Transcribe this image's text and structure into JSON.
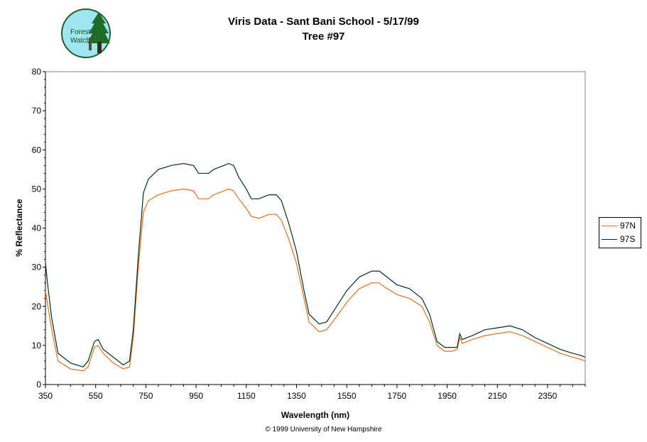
{
  "chart_data": {
    "type": "line",
    "title": "Viris Data - Sant Bani School - 5/17/99",
    "subtitle": "Tree #97",
    "xlabel": "Wavelength (nm)",
    "ylabel": "% Reflectance",
    "xlim": [
      350,
      2500
    ],
    "ylim": [
      0,
      80
    ],
    "xticks": [
      350,
      550,
      750,
      950,
      1150,
      1350,
      1550,
      1750,
      1950,
      2150,
      2350
    ],
    "yticks": [
      0,
      10,
      20,
      30,
      40,
      50,
      60,
      70,
      80
    ],
    "grid": false,
    "legend": "right",
    "series": [
      {
        "name": "97N",
        "color": "#e07020",
        "points": [
          [
            350,
            24
          ],
          [
            360,
            20
          ],
          [
            375,
            14
          ],
          [
            400,
            6
          ],
          [
            450,
            4
          ],
          [
            500,
            3.5
          ],
          [
            520,
            4.5
          ],
          [
            545,
            9.5
          ],
          [
            560,
            10
          ],
          [
            580,
            8
          ],
          [
            620,
            5.5
          ],
          [
            660,
            4
          ],
          [
            685,
            4.5
          ],
          [
            700,
            12
          ],
          [
            720,
            30
          ],
          [
            740,
            44
          ],
          [
            760,
            47
          ],
          [
            800,
            48.5
          ],
          [
            850,
            49.5
          ],
          [
            900,
            50
          ],
          [
            940,
            49.5
          ],
          [
            960,
            47.5
          ],
          [
            1000,
            47.5
          ],
          [
            1020,
            48.5
          ],
          [
            1060,
            49.5
          ],
          [
            1080,
            50
          ],
          [
            1100,
            49.5
          ],
          [
            1120,
            47.5
          ],
          [
            1150,
            45
          ],
          [
            1170,
            43
          ],
          [
            1200,
            42.5
          ],
          [
            1240,
            43.5
          ],
          [
            1270,
            43.5
          ],
          [
            1290,
            42
          ],
          [
            1320,
            37
          ],
          [
            1350,
            31
          ],
          [
            1380,
            22
          ],
          [
            1400,
            16
          ],
          [
            1440,
            13.5
          ],
          [
            1470,
            14
          ],
          [
            1500,
            16.5
          ],
          [
            1550,
            21
          ],
          [
            1600,
            24.5
          ],
          [
            1650,
            26
          ],
          [
            1680,
            26
          ],
          [
            1700,
            25
          ],
          [
            1750,
            23
          ],
          [
            1800,
            22
          ],
          [
            1850,
            20
          ],
          [
            1880,
            16
          ],
          [
            1910,
            10
          ],
          [
            1940,
            8.5
          ],
          [
            1970,
            8.5
          ],
          [
            1990,
            9
          ],
          [
            2000,
            12
          ],
          [
            2010,
            10.5
          ],
          [
            2050,
            11.5
          ],
          [
            2100,
            12.5
          ],
          [
            2150,
            13
          ],
          [
            2200,
            13.5
          ],
          [
            2250,
            12.5
          ],
          [
            2300,
            11
          ],
          [
            2350,
            9.5
          ],
          [
            2400,
            8
          ],
          [
            2450,
            7
          ],
          [
            2480,
            6.5
          ],
          [
            2500,
            6
          ]
        ]
      },
      {
        "name": "97S",
        "color": "#003018",
        "points": [
          [
            350,
            31
          ],
          [
            360,
            25
          ],
          [
            375,
            17
          ],
          [
            400,
            8
          ],
          [
            450,
            5.5
          ],
          [
            500,
            4.5
          ],
          [
            520,
            6
          ],
          [
            545,
            11
          ],
          [
            560,
            11.5
          ],
          [
            580,
            9
          ],
          [
            620,
            7
          ],
          [
            660,
            5
          ],
          [
            685,
            6
          ],
          [
            700,
            14
          ],
          [
            720,
            33
          ],
          [
            740,
            49
          ],
          [
            760,
            52.5
          ],
          [
            800,
            55
          ],
          [
            850,
            56
          ],
          [
            900,
            56.5
          ],
          [
            940,
            56
          ],
          [
            960,
            54
          ],
          [
            1000,
            54
          ],
          [
            1020,
            55
          ],
          [
            1060,
            56
          ],
          [
            1080,
            56.5
          ],
          [
            1100,
            56
          ],
          [
            1120,
            53
          ],
          [
            1150,
            50
          ],
          [
            1170,
            47.5
          ],
          [
            1200,
            47.5
          ],
          [
            1240,
            48.5
          ],
          [
            1270,
            48.5
          ],
          [
            1290,
            47
          ],
          [
            1320,
            41
          ],
          [
            1350,
            34
          ],
          [
            1380,
            24
          ],
          [
            1400,
            18
          ],
          [
            1440,
            15.5
          ],
          [
            1470,
            16
          ],
          [
            1500,
            19
          ],
          [
            1550,
            24
          ],
          [
            1600,
            27.5
          ],
          [
            1650,
            29
          ],
          [
            1680,
            29
          ],
          [
            1700,
            28
          ],
          [
            1750,
            25.5
          ],
          [
            1800,
            24.5
          ],
          [
            1850,
            22
          ],
          [
            1880,
            18
          ],
          [
            1910,
            11
          ],
          [
            1940,
            9.5
          ],
          [
            1970,
            9.5
          ],
          [
            1990,
            9.5
          ],
          [
            2000,
            13
          ],
          [
            2010,
            11.5
          ],
          [
            2050,
            12.5
          ],
          [
            2100,
            14
          ],
          [
            2150,
            14.5
          ],
          [
            2200,
            15
          ],
          [
            2250,
            14
          ],
          [
            2300,
            12
          ],
          [
            2350,
            10.5
          ],
          [
            2400,
            9
          ],
          [
            2450,
            8
          ],
          [
            2480,
            7.5
          ],
          [
            2500,
            7
          ]
        ]
      }
    ]
  },
  "logo": {
    "line1": "Forest",
    "line2": "Watch"
  },
  "footer": "© 1999 University of New Hampshire"
}
